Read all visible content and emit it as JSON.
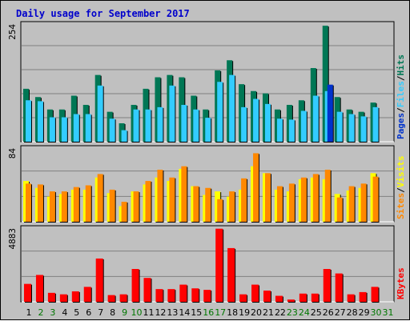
{
  "colors": {
    "background": "#c0c0c0",
    "panel": "#c0c0c0",
    "grid": "#808080",
    "hits": "#007755",
    "files": "#33ccff",
    "pages": "#0033cc",
    "visits": "#ffff00",
    "sites": "#ff8800",
    "kbytes": "#ff0000",
    "title": "#0000cc",
    "weekend_day": "#007700",
    "weekday_day": "#000000"
  },
  "chart_data": {
    "type": "bar",
    "title": "Daily usage for September 2017",
    "days": [
      "1",
      "2",
      "3",
      "4",
      "5",
      "6",
      "7",
      "8",
      "9",
      "10",
      "11",
      "12",
      "13",
      "14",
      "15",
      "16",
      "17",
      "18",
      "19",
      "20",
      "21",
      "22",
      "23",
      "24",
      "25",
      "26",
      "27",
      "28",
      "29",
      "30",
      "31"
    ],
    "weekend_days": [
      "2",
      "3",
      "9",
      "10",
      "16",
      "17",
      "23",
      "24",
      "30",
      "31"
    ],
    "panels": [
      {
        "id": "hits-files-pages",
        "max_label": "254",
        "ymax": 254,
        "legend": [
          "Pages",
          "/",
          "Files",
          "/",
          "Hits"
        ],
        "series": [
          {
            "name": "Hits",
            "values": [
              115,
              97,
              70,
              70,
              100,
              80,
              145,
              65,
              40,
              80,
              115,
              140,
              145,
              140,
              100,
              70,
              155,
              177,
              125,
              110,
              105,
              70,
              80,
              90,
              160,
              252,
              97,
              70,
              65,
              85,
              null
            ]
          },
          {
            "name": "Files",
            "values": [
              90,
              88,
              53,
              53,
              60,
              60,
              122,
              50,
              25,
              70,
              70,
              75,
              122,
              80,
              70,
              52,
              130,
              145,
              75,
              93,
              82,
              50,
              48,
              67,
              100,
              110,
              65,
              60,
              55,
              75,
              null
            ]
          },
          {
            "name": "Pages",
            "values": [
              0,
              0,
              0,
              0,
              0,
              0,
              0,
              0,
              0,
              0,
              0,
              0,
              0,
              0,
              0,
              0,
              0,
              0,
              0,
              0,
              0,
              0,
              0,
              0,
              0,
              124,
              0,
              0,
              0,
              0,
              null
            ]
          }
        ]
      },
      {
        "id": "visits-sites",
        "max_label": "84",
        "ymax": 84,
        "legend": [
          "Sites",
          "/",
          "Visits"
        ],
        "series": [
          {
            "name": "Visits",
            "values": [
              47,
              39,
              29,
              32,
              37,
              37,
              51,
              33,
              18,
              35,
              43,
              51,
              47,
              61,
              41,
              31,
              35,
              29,
              37,
              64,
              56,
              37,
              35,
              49,
              51,
              49,
              32,
              36,
              39,
              56,
              null
            ]
          },
          {
            "name": "Sites",
            "values": [
              44,
              43,
              35,
              35,
              40,
              42,
              55,
              37,
              23,
              35,
              47,
              60,
              51,
              64,
              41,
              39,
              26,
              35,
              50,
              79,
              56,
              41,
              44,
              51,
              55,
              60,
              28,
              41,
              44,
              52,
              null
            ]
          }
        ]
      },
      {
        "id": "kbytes",
        "max_label": "4883",
        "ymax": 4883,
        "legend": [
          "KBytes"
        ],
        "series": [
          {
            "name": "KBytes",
            "values": [
              1200,
              1800,
              600,
              500,
              700,
              1000,
              2900,
              450,
              500,
              2200,
              1600,
              850,
              850,
              1150,
              900,
              800,
              4900,
              3600,
              500,
              1150,
              750,
              400,
              150,
              550,
              550,
              2200,
              1900,
              500,
              650,
              1000,
              null
            ]
          }
        ]
      }
    ]
  }
}
